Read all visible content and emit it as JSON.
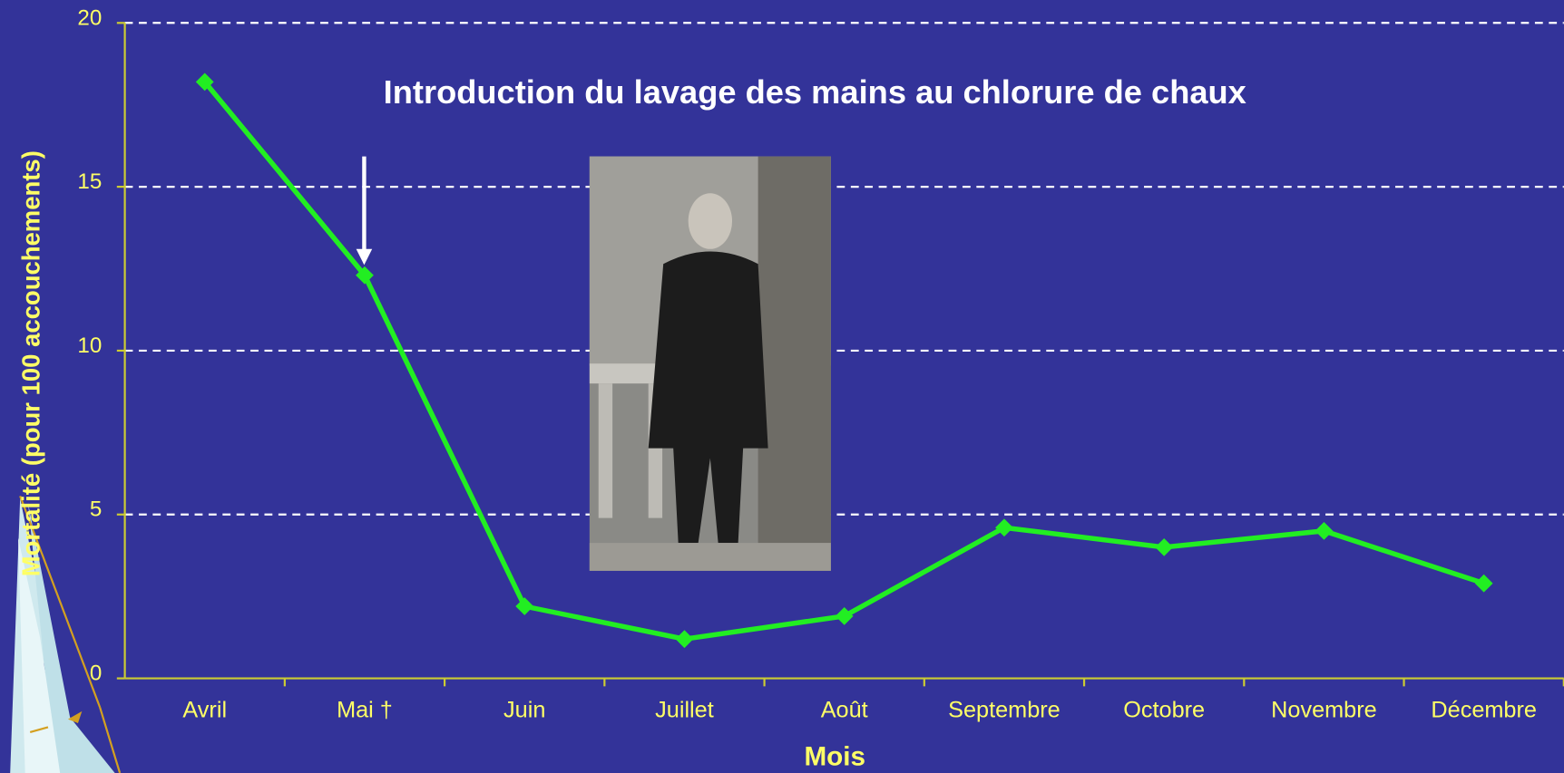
{
  "chart_data": {
    "type": "line",
    "x_label": "Mois",
    "y_label": "Mortalité (pour 100 accouchements)",
    "annotation": "Introduction du lavage des mains au chlorure de chaux",
    "categories": [
      "Avril",
      "Mai †",
      "Juin",
      "Juillet",
      "Août",
      "Septembre",
      "Octobre",
      "Novembre",
      "Décembre"
    ],
    "values": [
      18.2,
      12.3,
      2.2,
      1.2,
      1.9,
      4.6,
      4.0,
      4.5,
      2.9
    ],
    "color": "#22ee22",
    "ylim": [
      0,
      20
    ],
    "yticks": [
      0,
      5,
      10,
      15,
      20
    ],
    "grid": true
  }
}
